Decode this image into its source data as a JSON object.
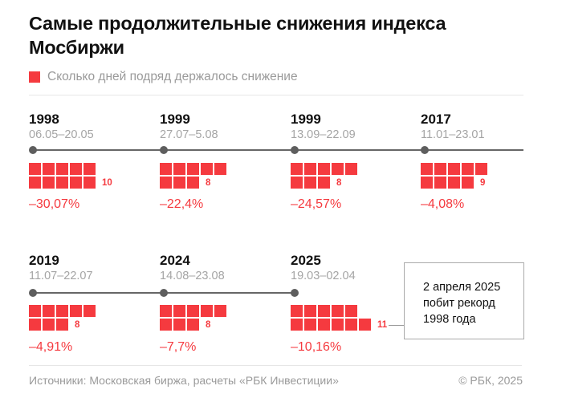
{
  "title": "Самые продолжительные снижения индекса Мосбиржи",
  "legend": "Сколько дней подряд держалось снижение",
  "colors": {
    "accent": "#f53a3f",
    "timeline": "#5e5e5e"
  },
  "chart_data": {
    "type": "waffle",
    "title": "Самые продолжительные снижения индекса Мосбиржи",
    "legend": [
      "Сколько дней подряд держалось снижение"
    ],
    "items": [
      {
        "year": "1998",
        "dates": "06.05–20.05",
        "days": 10,
        "days_label": "10",
        "change": "–30,07%"
      },
      {
        "year": "1999",
        "dates": "27.07–5.08",
        "days": 8,
        "days_label": "8",
        "change": "–22,4%"
      },
      {
        "year": "1999",
        "dates": "13.09–22.09",
        "days": 8,
        "days_label": "8",
        "change": "–24,57%"
      },
      {
        "year": "2017",
        "dates": "11.01–23.01",
        "days": 9,
        "days_label": "9",
        "change": "–4,08%"
      },
      {
        "year": "2019",
        "dates": "11.07–22.07",
        "days": 8,
        "days_label": "8",
        "change": "–4,91%"
      },
      {
        "year": "2024",
        "dates": "14.08–23.08",
        "days": 8,
        "days_label": "8",
        "change": "–7,7%"
      },
      {
        "year": "2025",
        "dates": "19.03–02.04",
        "days": 11,
        "days_label": "11",
        "change": "–10,16%"
      }
    ]
  },
  "callout": {
    "line1": "2 апреля 2025",
    "line2": "побит рекорд",
    "line3": "1998 года"
  },
  "footer": {
    "source": "Источники: Московская биржа, расчеты «РБК Инвестиции»",
    "copyright": "© РБК, 2025"
  }
}
